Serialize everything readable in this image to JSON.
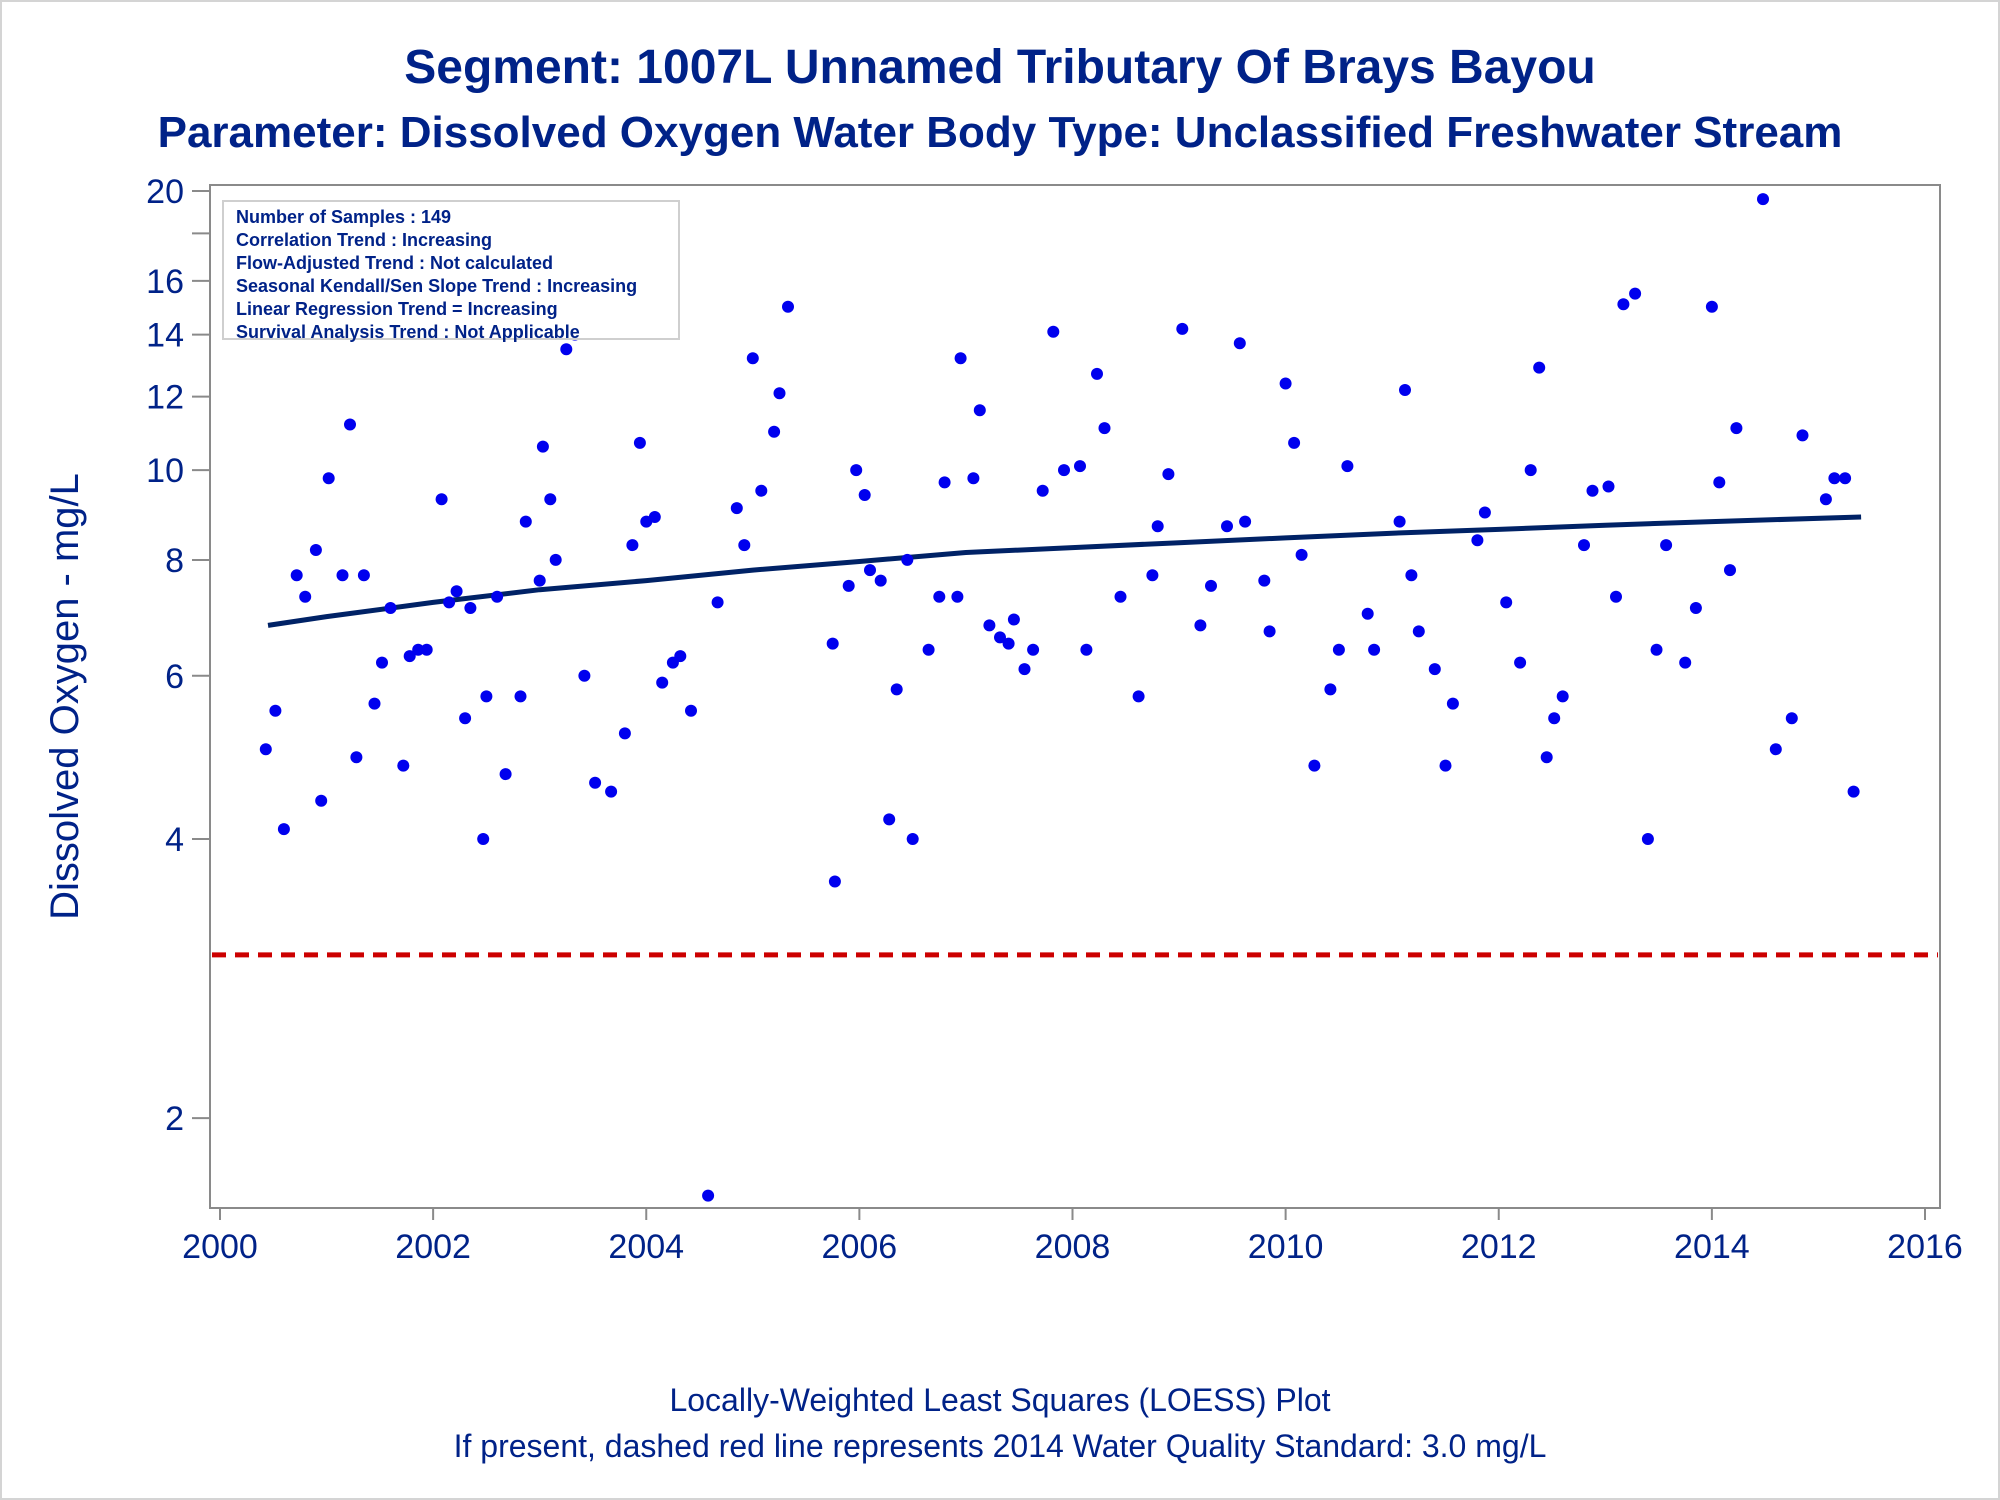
{
  "title_line1": "Segment: 1007L  Unnamed Tributary Of Brays Bayou",
  "title_line2": "Parameter: Dissolved Oxygen   Water Body Type: Unclassified Freshwater Stream",
  "footnote_line1": "Locally-Weighted Least Squares (LOESS) Plot",
  "footnote_line2": "If present, dashed red line represents 2014 Water Quality Standard: 3.0 mg/L",
  "info_box": [
    "Number of Samples : 149",
    "Correlation Trend : Increasing",
    "Flow-Adjusted Trend : Not calculated",
    "Seasonal Kendall/Sen Slope Trend : Increasing",
    "Linear Regression Trend = Increasing",
    "Survival Analysis Trend : Not Applicable"
  ],
  "colors": {
    "points": "#0000ee",
    "loess": "#002266",
    "standard": "#cc0000",
    "text": "#002288",
    "axis": "#8a8a8a"
  },
  "chart_data": {
    "type": "scatter",
    "xlabel": "",
    "ylabel": "Dissolved Oxygen - mg/L",
    "yscale": "log",
    "xlim": [
      2000,
      2016
    ],
    "ylim": [
      1.6,
      20.3
    ],
    "xticks": [
      2000,
      2002,
      2004,
      2006,
      2008,
      2010,
      2012,
      2014,
      2016
    ],
    "yticks": [
      2,
      4,
      6,
      8,
      10,
      12,
      14,
      16,
      20
    ],
    "yminor_ticks": [
      18
    ],
    "standard_line": {
      "value": 3.0,
      "style": "dashed"
    },
    "points": [
      [
        2000.43,
        5.0
      ],
      [
        2000.52,
        5.5
      ],
      [
        2000.6,
        4.1
      ],
      [
        2000.72,
        7.7
      ],
      [
        2000.8,
        7.3
      ],
      [
        2000.9,
        8.2
      ],
      [
        2000.95,
        4.4
      ],
      [
        2001.02,
        9.8
      ],
      [
        2001.15,
        7.7
      ],
      [
        2001.22,
        11.2
      ],
      [
        2001.28,
        4.9
      ],
      [
        2001.35,
        7.7
      ],
      [
        2001.45,
        5.6
      ],
      [
        2001.52,
        6.2
      ],
      [
        2001.6,
        7.1
      ],
      [
        2001.72,
        4.8
      ],
      [
        2001.78,
        6.3
      ],
      [
        2001.86,
        6.4
      ],
      [
        2001.94,
        6.4
      ],
      [
        2002.08,
        9.3
      ],
      [
        2002.15,
        7.2
      ],
      [
        2002.22,
        7.4
      ],
      [
        2002.3,
        5.4
      ],
      [
        2002.35,
        7.1
      ],
      [
        2002.47,
        4.0
      ],
      [
        2002.5,
        5.7
      ],
      [
        2002.6,
        7.3
      ],
      [
        2002.68,
        4.7
      ],
      [
        2002.82,
        5.7
      ],
      [
        2002.87,
        8.8
      ],
      [
        2003.0,
        7.6
      ],
      [
        2003.03,
        10.6
      ],
      [
        2003.1,
        9.3
      ],
      [
        2003.15,
        8.0
      ],
      [
        2003.25,
        13.5
      ],
      [
        2003.33,
        14.0
      ],
      [
        2003.42,
        6.0
      ],
      [
        2003.52,
        4.6
      ],
      [
        2003.67,
        4.5
      ],
      [
        2003.8,
        5.2
      ],
      [
        2003.87,
        8.3
      ],
      [
        2003.94,
        10.7
      ],
      [
        2004.0,
        8.8
      ],
      [
        2004.08,
        8.9
      ],
      [
        2004.15,
        5.9
      ],
      [
        2004.25,
        6.2
      ],
      [
        2004.32,
        6.3
      ],
      [
        2004.42,
        5.5
      ],
      [
        2004.58,
        1.65
      ],
      [
        2004.67,
        7.2
      ],
      [
        2004.85,
        9.1
      ],
      [
        2004.92,
        8.3
      ],
      [
        2005.0,
        13.2
      ],
      [
        2005.08,
        9.5
      ],
      [
        2005.2,
        11.0
      ],
      [
        2005.25,
        12.1
      ],
      [
        2005.33,
        15.0
      ],
      [
        2005.75,
        6.5
      ],
      [
        2005.77,
        3.6
      ],
      [
        2005.9,
        7.5
      ],
      [
        2005.97,
        10.0
      ],
      [
        2006.05,
        9.4
      ],
      [
        2006.1,
        7.8
      ],
      [
        2006.2,
        7.6
      ],
      [
        2006.28,
        4.2
      ],
      [
        2006.35,
        5.8
      ],
      [
        2006.45,
        8.0
      ],
      [
        2006.5,
        4.0
      ],
      [
        2006.65,
        6.4
      ],
      [
        2006.75,
        7.3
      ],
      [
        2006.8,
        9.7
      ],
      [
        2006.92,
        7.3
      ],
      [
        2006.95,
        13.2
      ],
      [
        2007.07,
        9.8
      ],
      [
        2007.13,
        11.6
      ],
      [
        2007.22,
        6.8
      ],
      [
        2007.32,
        6.6
      ],
      [
        2007.4,
        6.5
      ],
      [
        2007.45,
        6.9
      ],
      [
        2007.55,
        6.1
      ],
      [
        2007.63,
        6.4
      ],
      [
        2007.72,
        9.5
      ],
      [
        2007.82,
        14.1
      ],
      [
        2007.92,
        10.0
      ],
      [
        2008.07,
        10.1
      ],
      [
        2008.13,
        6.4
      ],
      [
        2008.23,
        12.7
      ],
      [
        2008.3,
        11.1
      ],
      [
        2008.45,
        7.3
      ],
      [
        2008.62,
        5.7
      ],
      [
        2008.75,
        7.7
      ],
      [
        2008.8,
        8.7
      ],
      [
        2008.9,
        9.9
      ],
      [
        2009.03,
        14.2
      ],
      [
        2009.2,
        6.8
      ],
      [
        2009.3,
        7.5
      ],
      [
        2009.45,
        8.7
      ],
      [
        2009.57,
        13.7
      ],
      [
        2009.62,
        8.8
      ],
      [
        2009.8,
        7.6
      ],
      [
        2009.85,
        6.7
      ],
      [
        2010.0,
        12.4
      ],
      [
        2010.08,
        10.7
      ],
      [
        2010.15,
        8.1
      ],
      [
        2010.27,
        4.8
      ],
      [
        2010.42,
        5.8
      ],
      [
        2010.5,
        6.4
      ],
      [
        2010.58,
        10.1
      ],
      [
        2010.77,
        7.0
      ],
      [
        2010.83,
        6.4
      ],
      [
        2011.07,
        8.8
      ],
      [
        2011.12,
        12.2
      ],
      [
        2011.18,
        7.7
      ],
      [
        2011.25,
        6.7
      ],
      [
        2011.4,
        6.1
      ],
      [
        2011.5,
        4.8
      ],
      [
        2011.57,
        5.6
      ],
      [
        2011.8,
        8.4
      ],
      [
        2011.87,
        9.0
      ],
      [
        2012.07,
        7.2
      ],
      [
        2012.2,
        6.2
      ],
      [
        2012.3,
        10.0
      ],
      [
        2012.38,
        12.9
      ],
      [
        2012.45,
        4.9
      ],
      [
        2012.52,
        5.4
      ],
      [
        2012.6,
        5.7
      ],
      [
        2012.8,
        8.3
      ],
      [
        2012.88,
        9.5
      ],
      [
        2013.03,
        9.6
      ],
      [
        2013.1,
        7.3
      ],
      [
        2013.17,
        15.1
      ],
      [
        2013.28,
        15.5
      ],
      [
        2013.4,
        4.0
      ],
      [
        2013.48,
        6.4
      ],
      [
        2013.57,
        8.3
      ],
      [
        2013.75,
        6.2
      ],
      [
        2013.85,
        7.1
      ],
      [
        2014.0,
        15.0
      ],
      [
        2014.07,
        9.7
      ],
      [
        2014.17,
        7.8
      ],
      [
        2014.23,
        11.1
      ],
      [
        2014.48,
        19.6
      ],
      [
        2014.6,
        5.0
      ],
      [
        2014.75,
        5.4
      ],
      [
        2014.85,
        10.9
      ],
      [
        2015.07,
        9.3
      ],
      [
        2015.15,
        9.8
      ],
      [
        2015.25,
        9.8
      ],
      [
        2015.33,
        4.5
      ]
    ],
    "loess": [
      [
        2000.45,
        6.8
      ],
      [
        2001.0,
        6.95
      ],
      [
        2002.0,
        7.2
      ],
      [
        2003.0,
        7.43
      ],
      [
        2004.0,
        7.6
      ],
      [
        2005.0,
        7.8
      ],
      [
        2006.0,
        7.97
      ],
      [
        2007.0,
        8.15
      ],
      [
        2008.0,
        8.25
      ],
      [
        2009.0,
        8.35
      ],
      [
        2010.0,
        8.45
      ],
      [
        2011.0,
        8.55
      ],
      [
        2012.0,
        8.63
      ],
      [
        2013.0,
        8.72
      ],
      [
        2014.0,
        8.8
      ],
      [
        2015.4,
        8.9
      ]
    ]
  }
}
